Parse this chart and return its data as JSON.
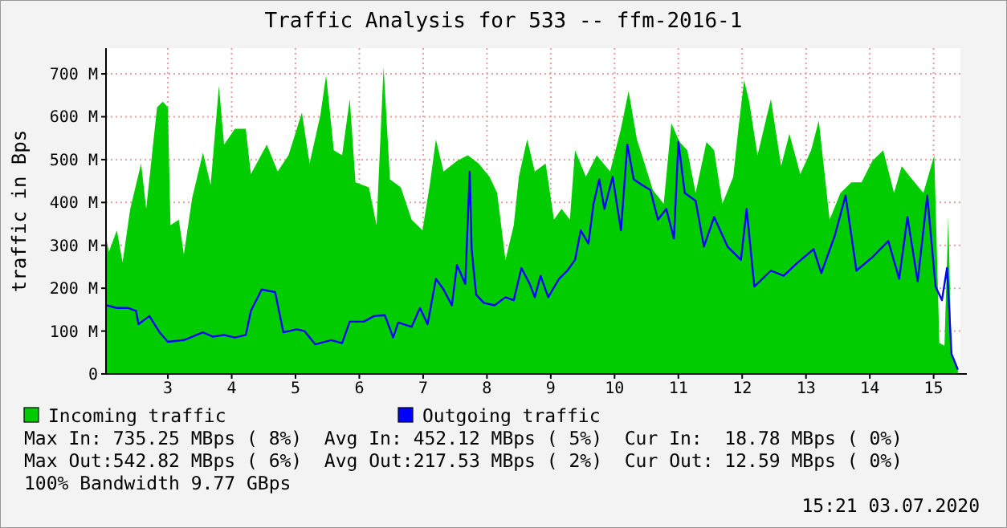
{
  "chart_data": {
    "type": "area",
    "title": "Traffic Analysis for 533 -- ffm-2016-1",
    "ylabel": "traffic in Bps",
    "xlim": [
      2.03,
      15.42
    ],
    "xticks": [
      3,
      4,
      5,
      6,
      7,
      8,
      9,
      10,
      11,
      12,
      13,
      14,
      15
    ],
    "ylim": [
      0,
      760
    ],
    "yticks": [
      0,
      {
        "value": 100,
        "label": "100 M"
      },
      {
        "value": 200,
        "label": "200 M"
      },
      {
        "value": 300,
        "label": "300 M"
      },
      {
        "value": 400,
        "label": "400 M"
      },
      {
        "value": 500,
        "label": "500 M"
      },
      {
        "value": 600,
        "label": "600 M"
      },
      {
        "value": 700,
        "label": "700 M"
      }
    ],
    "grid": true,
    "legend": "bottom",
    "series": [
      {
        "name": "Incoming traffic",
        "type": "area",
        "color": "#00cc00",
        "x": [
          2.035,
          2.076,
          2.2,
          2.29,
          2.41,
          2.58,
          2.66,
          2.83,
          2.92,
          3.0,
          3.04,
          3.17,
          3.25,
          3.38,
          3.55,
          3.67,
          3.8,
          3.88,
          4.05,
          4.22,
          4.3,
          4.55,
          4.72,
          4.89,
          5.1,
          5.22,
          5.39,
          5.48,
          5.6,
          5.73,
          5.85,
          5.94,
          6.15,
          6.27,
          6.38,
          6.48,
          6.65,
          6.82,
          6.99,
          7.11,
          7.2,
          7.32,
          7.53,
          7.7,
          7.87,
          8.04,
          8.16,
          8.29,
          8.42,
          8.5,
          8.63,
          8.75,
          8.92,
          9.05,
          9.17,
          9.3,
          9.38,
          9.55,
          9.72,
          9.93,
          10.1,
          10.22,
          10.35,
          10.47,
          10.6,
          10.77,
          10.89,
          11.02,
          11.14,
          11.27,
          11.44,
          11.56,
          11.69,
          11.86,
          11.94,
          12.03,
          12.11,
          12.24,
          12.45,
          12.61,
          12.74,
          12.91,
          13.08,
          13.2,
          13.37,
          13.54,
          13.71,
          13.87,
          14.04,
          14.21,
          14.38,
          14.5,
          14.63,
          14.84,
          15.01,
          15.09,
          15.17,
          15.23,
          15.28,
          15.38
        ],
        "values": [
          316,
          285,
          335,
          260,
          385,
          491,
          385,
          622,
          635,
          622,
          347,
          360,
          279,
          410,
          516,
          441,
          672,
          535,
          572,
          572,
          466,
          535,
          472,
          510,
          610,
          491,
          604,
          697,
          522,
          510,
          641,
          447,
          435,
          347,
          716,
          454,
          435,
          360,
          335,
          447,
          547,
          472,
          497,
          510,
          491,
          460,
          422,
          266,
          347,
          460,
          547,
          472,
          491,
          360,
          385,
          360,
          522,
          460,
          510,
          472,
          572,
          660,
          547,
          491,
          429,
          397,
          585,
          541,
          522,
          422,
          541,
          522,
          397,
          460,
          572,
          685,
          635,
          510,
          641,
          485,
          560,
          466,
          522,
          591,
          360,
          422,
          447,
          447,
          497,
          522,
          422,
          485,
          460,
          422,
          510,
          72,
          66,
          366,
          47,
          16
        ]
      },
      {
        "name": "Outgoing traffic",
        "type": "line",
        "color": "#0000ff",
        "x": [
          2.035,
          2.2,
          2.37,
          2.5,
          2.54,
          2.71,
          2.87,
          3.0,
          3.25,
          3.55,
          3.71,
          3.88,
          4.05,
          4.22,
          4.3,
          4.47,
          4.68,
          4.81,
          5.02,
          5.14,
          5.31,
          5.56,
          5.73,
          5.85,
          6.07,
          6.23,
          6.4,
          6.53,
          6.61,
          6.82,
          6.95,
          7.07,
          7.2,
          7.32,
          7.45,
          7.53,
          7.66,
          7.73,
          7.76,
          7.83,
          7.95,
          8.12,
          8.29,
          8.42,
          8.54,
          8.67,
          8.75,
          8.84,
          8.96,
          9.13,
          9.26,
          9.38,
          9.47,
          9.59,
          9.67,
          9.76,
          9.84,
          9.97,
          10.1,
          10.2,
          10.3,
          10.43,
          10.56,
          10.68,
          10.81,
          10.93,
          11.0,
          11.1,
          11.27,
          11.4,
          11.56,
          11.77,
          11.98,
          12.07,
          12.19,
          12.45,
          12.65,
          12.87,
          13.12,
          13.24,
          13.45,
          13.62,
          13.79,
          14.04,
          14.29,
          14.46,
          14.59,
          14.75,
          14.9,
          15.03,
          15.13,
          15.21,
          15.28,
          15.38
        ],
        "values": [
          160,
          154,
          154,
          147,
          116,
          135,
          97,
          75,
          79,
          97,
          87,
          91,
          85,
          91,
          147,
          197,
          191,
          97,
          104,
          100,
          69,
          79,
          72,
          122,
          122,
          135,
          137,
          85,
          120,
          110,
          154,
          116,
          222,
          197,
          160,
          254,
          210,
          472,
          291,
          185,
          166,
          160,
          179,
          172,
          247,
          210,
          179,
          229,
          179,
          222,
          241,
          266,
          335,
          304,
          397,
          454,
          385,
          460,
          335,
          535,
          454,
          441,
          429,
          360,
          385,
          316,
          541,
          422,
          404,
          297,
          366,
          297,
          266,
          385,
          204,
          241,
          229,
          260,
          291,
          235,
          322,
          416,
          241,
          272,
          310,
          222,
          366,
          216,
          416,
          204,
          172,
          247,
          47,
          10
        ]
      }
    ],
    "annotations": [
      "Max In: 735.25 MBps ( 8%)  Avg In: 452.12 MBps ( 5%)  Cur In:  18.78 MBps ( 0%)",
      "Max Out:542.82 MBps ( 6%)  Avg Out:217.53 MBps ( 2%)  Cur Out: 12.59 MBps ( 0%)",
      "100% Bandwidth 9.77 GBps",
      "15:21 03.07.2020"
    ]
  }
}
